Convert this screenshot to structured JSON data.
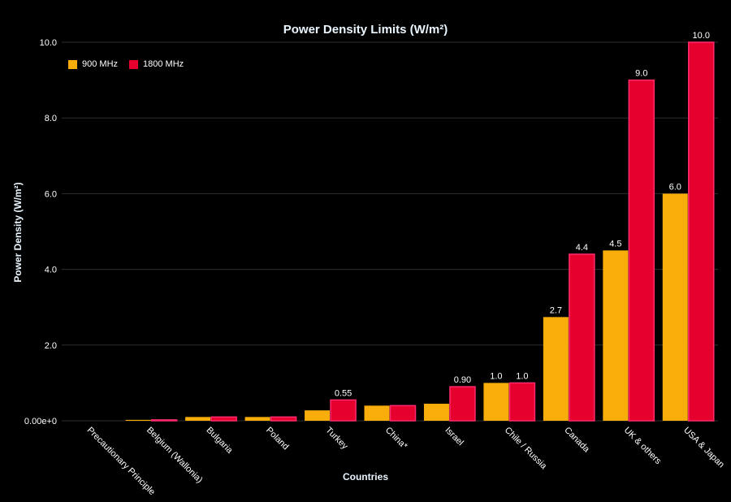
{
  "chart_data": {
    "type": "bar",
    "title": "Power Density Limits (W/m²)",
    "xlabel": "Countries",
    "ylabel": "Power Density (W/m²)",
    "categories": [
      "Precautionary Principle",
      "Belgium (Wallonia)",
      "Bulgaria",
      "Poland",
      "Turkey",
      "China*",
      "Israel",
      "Chile / Russia",
      "Canada",
      "UK & others",
      "USA & Japan"
    ],
    "series": [
      {
        "name": "900 MHz",
        "color": "#F8AD0B",
        "values": [
          0,
          0.024,
          0.1,
          0.1,
          0.275,
          0.4,
          0.45,
          1.0,
          2.74,
          4.5,
          6.0
        ],
        "labels": [
          "",
          "",
          "",
          "",
          "",
          "",
          "",
          "1.0",
          "2.7",
          "4.5",
          "6.0"
        ]
      },
      {
        "name": "1800 MHz",
        "color": "#E6002E",
        "values": [
          0,
          0.024,
          0.1,
          0.1,
          0.55,
          0.4,
          0.9,
          1.0,
          4.4,
          9.0,
          10.0
        ],
        "labels": [
          "",
          "",
          "",
          "",
          "0.55",
          "",
          "0.90",
          "1.0",
          "4.4",
          "9.0",
          "10.0"
        ]
      }
    ],
    "ylim": [
      0,
      10
    ],
    "yticks": [
      0,
      2,
      4,
      6,
      8,
      10
    ],
    "ytick_labels": [
      "0.00e+0",
      "2.0",
      "4.0",
      "6.0",
      "8.0",
      "10.0"
    ],
    "grid": true,
    "legend": "top-left"
  }
}
